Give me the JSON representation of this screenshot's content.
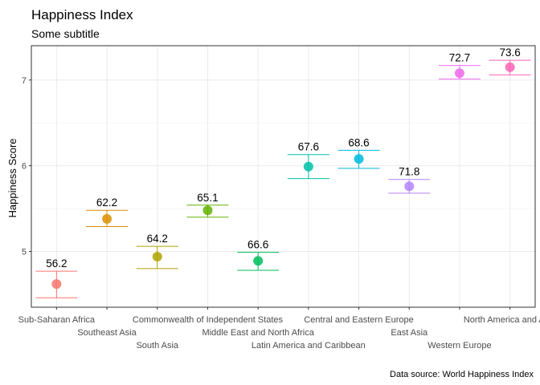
{
  "chart_data": {
    "type": "scatter",
    "title": "Happiness Index",
    "subtitle": "Some subtitle",
    "xlabel": "",
    "ylabel": "Happiness Score",
    "caption": "Data source: World Happiness Index",
    "ylim": [
      4.35,
      7.4
    ],
    "yticks": [
      5,
      6,
      7
    ],
    "grid": true,
    "legend": "none",
    "categories": [
      "Sub-Saharan Africa",
      "Southeast Asia",
      "South Asia",
      "Commonwealth of Independent States",
      "Middle East and North Africa",
      "Latin America and Caribbean",
      "Central and Eastern Europe",
      "Eastern Europe",
      "East Asia",
      "Western Europe",
      "North America and ANZ"
    ],
    "visible_x_labels": [
      "Sub-Saharan Africa",
      "Southeast Asia",
      "South Asia",
      "Commonwealth of Independent States",
      "Middle East and North Africa",
      "Latin America and Caribbean",
      "Central and Eastern Europe",
      "East Asia",
      "Western Europe",
      "North America and ANZ"
    ],
    "points": [
      {
        "category": "Sub-Saharan Africa",
        "mean": 4.62,
        "low": 4.46,
        "high": 4.77,
        "label": "56.2",
        "color": "#F8766D"
      },
      {
        "category": "Southeast Asia",
        "mean": 5.38,
        "low": 5.29,
        "high": 5.48,
        "label": "62.2",
        "color": "#DB8E00"
      },
      {
        "category": "South Asia",
        "mean": 4.94,
        "low": 4.8,
        "high": 5.06,
        "label": "64.2",
        "color": "#AEA200"
      },
      {
        "category": "Commonwealth of Independent States",
        "mean": 5.48,
        "low": 5.4,
        "high": 5.54,
        "label": "65.1",
        "color": "#64B200"
      },
      {
        "category": "Middle East and North Africa",
        "mean": 4.89,
        "low": 4.78,
        "high": 4.99,
        "label": "66.6",
        "color": "#00BD5C"
      },
      {
        "category": "Latin America and Caribbean",
        "mean": 5.99,
        "low": 5.85,
        "high": 6.13,
        "label": "67.6",
        "color": "#00C1A7"
      },
      {
        "category": "Central and Eastern Europe",
        "mean": 6.08,
        "low": 5.97,
        "high": 6.18,
        "label": "68.6",
        "color": "#00BADE"
      },
      {
        "category": "East Asia",
        "mean": 5.76,
        "low": 5.68,
        "high": 5.84,
        "label": "71.8",
        "color": "#B385FF"
      },
      {
        "category": "Western Europe",
        "mean": 7.08,
        "low": 7.01,
        "high": 7.17,
        "label": "72.7",
        "color": "#EF67EB"
      },
      {
        "category": "North America and ANZ",
        "mean": 7.15,
        "low": 7.06,
        "high": 7.23,
        "label": "73.6",
        "color": "#FF63B6"
      }
    ]
  }
}
